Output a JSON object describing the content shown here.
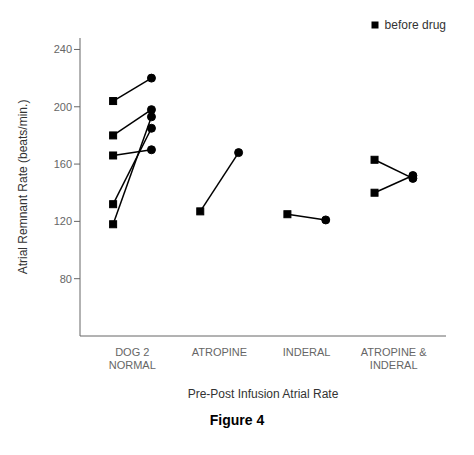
{
  "chart_data": {
    "type": "paired",
    "title": "Figure 4",
    "xlabel": "Pre-Post Infusion Atrial Rate",
    "ylabel": "Atrial Remnant Rate (beats/min.)",
    "categories": [
      "DOG 2\nNORMAL",
      "ATROPINE",
      "INDERAL",
      "ATROPINE &\nINDERAL"
    ],
    "series": [
      {
        "name": "before drug",
        "color": "#000000",
        "marker": "square",
        "values": [
          [
            [
              118,
              193
            ],
            [
              132,
              185
            ],
            [
              166,
              170
            ],
            [
              180,
              198
            ],
            [
              204,
              220
            ]
          ],
          [
            [
              127,
              168
            ]
          ],
          [
            [
              125,
              121
            ]
          ],
          [
            [
              163,
              150
            ],
            [
              140,
              152
            ]
          ]
        ]
      }
    ],
    "ylim": [
      40,
      248
    ],
    "yticks": [
      80,
      120,
      160,
      200,
      240
    ],
    "legend": "upper right",
    "grid": false
  }
}
